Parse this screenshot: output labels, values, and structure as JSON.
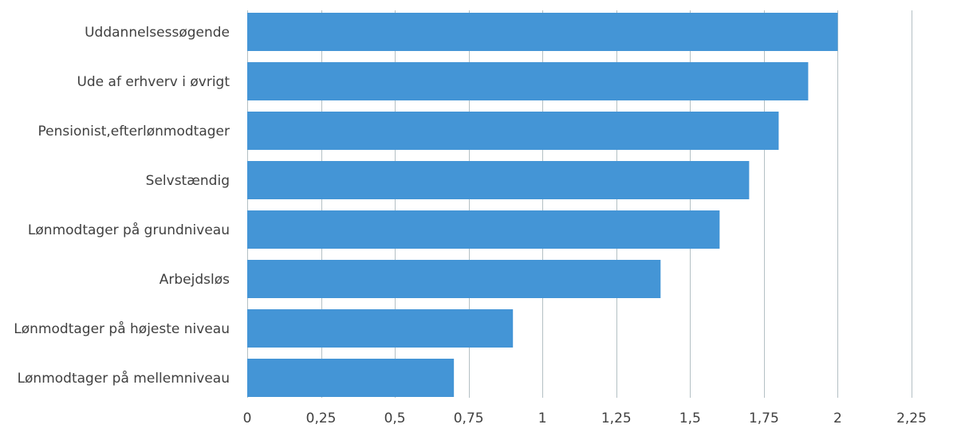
{
  "chart_data": {
    "type": "bar",
    "orientation": "horizontal",
    "title": "",
    "xlabel": "",
    "ylabel": "",
    "categories": [
      "Uddannelsessøgende",
      "Ude af erhverv i øvrigt",
      "Pensionist,efterlønmodtager",
      "Selvstændig",
      "Lønmodtager på grundniveau",
      "Arbejdsløs",
      "Lønmodtager på højeste niveau",
      "Lønmodtager på mellemniveau"
    ],
    "values": [
      2.0,
      1.9,
      1.8,
      1.7,
      1.6,
      1.4,
      0.9,
      0.7
    ],
    "xlim": [
      0,
      2.25
    ],
    "xticks": [
      0,
      0.25,
      0.5,
      0.75,
      1,
      1.25,
      1.5,
      1.75,
      2,
      2.25
    ],
    "xtick_labels": [
      "0",
      "0,25",
      "0,5",
      "0,75",
      "1",
      "1,25",
      "1,5",
      "1,75",
      "2",
      "2,25"
    ],
    "grid": "vertical",
    "legend": "none",
    "bar_color": "#4495d6",
    "grid_color": "#b4c0c4",
    "text_color": "#404040"
  }
}
